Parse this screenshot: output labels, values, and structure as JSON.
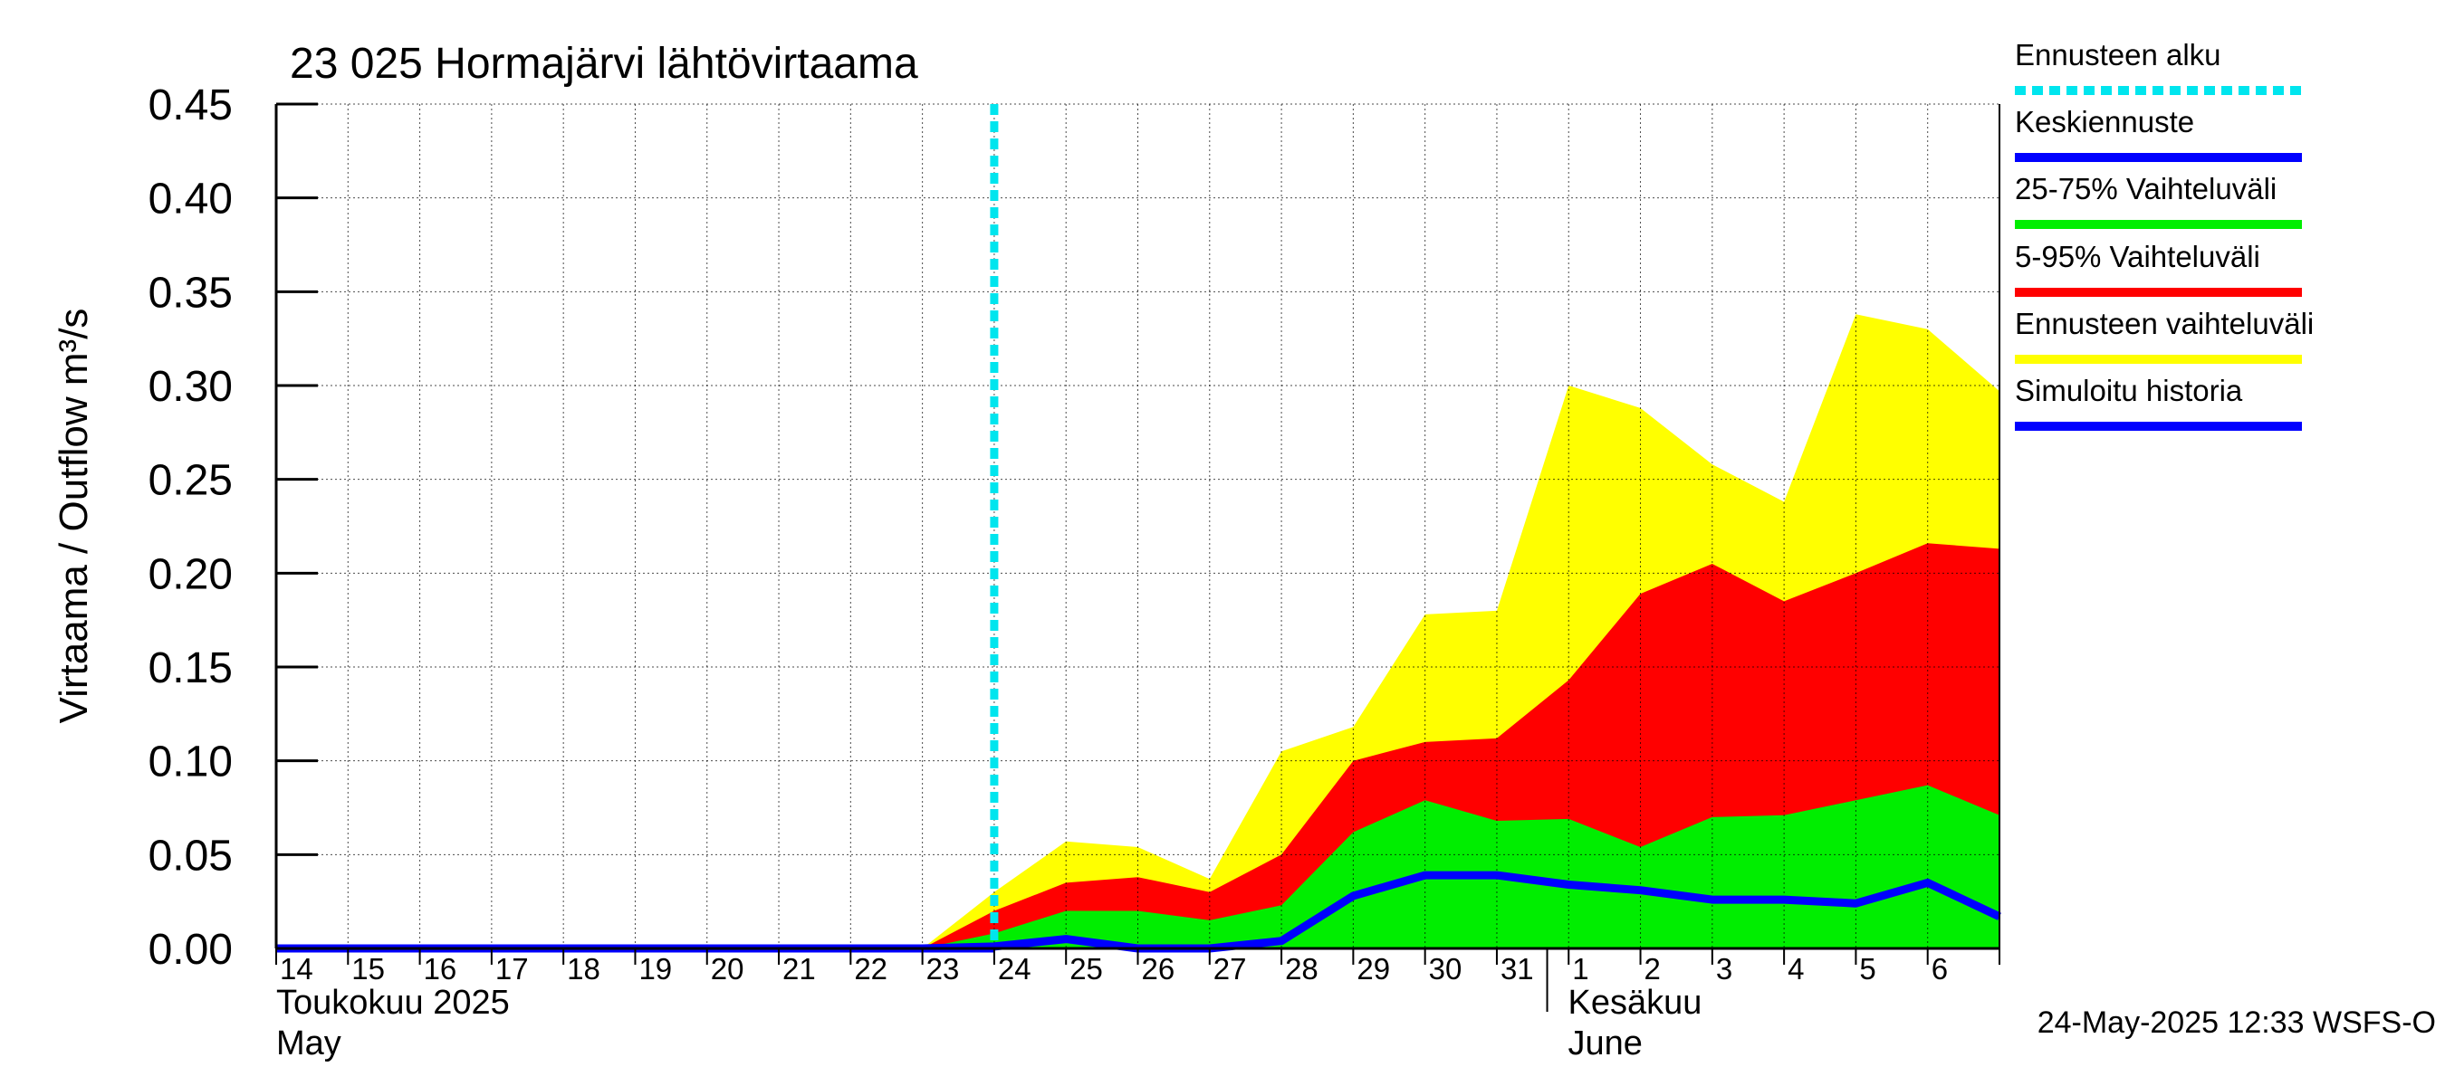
{
  "chart_data": {
    "type": "area",
    "title": "23 025 Hormajärvi lähtövirtaama",
    "ylabel": "Virtaama / Outflow    m³/s",
    "ylim": [
      0,
      0.45
    ],
    "yticks": [
      "0.00",
      "0.05",
      "0.10",
      "0.15",
      "0.20",
      "0.25",
      "0.30",
      "0.35",
      "0.40",
      "0.45"
    ],
    "xlim": [
      "2025-05-14",
      "2025-06-07"
    ],
    "day_labels": [
      "14",
      "15",
      "16",
      "17",
      "18",
      "19",
      "20",
      "21",
      "22",
      "23",
      "24",
      "25",
      "26",
      "27",
      "28",
      "29",
      "30",
      "31",
      "1",
      "2",
      "3",
      "4",
      "5",
      "6"
    ],
    "month_labels": [
      {
        "line1": "Toukokuu  2025",
        "line2": "May",
        "date": "2025-05-14"
      },
      {
        "line1": "Kesäkuu",
        "line2": "June",
        "date": "2025-06-02"
      }
    ],
    "forecast_start": "2025-05-24",
    "timestamp": "24-May-2025 12:33 WSFS-O",
    "grid": true,
    "legend_position": "right",
    "legend": [
      {
        "label": "Ennusteen alku",
        "color": "#00e5ee",
        "style": "dotted"
      },
      {
        "label": "Keskiennuste",
        "color": "#0000ff",
        "style": "solid"
      },
      {
        "label": "25-75% Vaihteluväli",
        "color": "#00ee00",
        "style": "solid"
      },
      {
        "label": "5-95% Vaihteluväli",
        "color": "#ff0000",
        "style": "solid"
      },
      {
        "label": "Ennusteen vaihteluväli",
        "color": "#ffff00",
        "style": "solid"
      },
      {
        "label": "Simuloitu historia",
        "color": "#0000ff",
        "style": "solid"
      }
    ],
    "x": [
      "2025-05-23",
      "2025-05-24",
      "2025-05-25",
      "2025-05-26",
      "2025-05-27",
      "2025-05-28",
      "2025-05-29",
      "2025-05-30",
      "2025-05-31",
      "2025-06-01",
      "2025-06-02",
      "2025-06-03",
      "2025-06-04",
      "2025-06-05",
      "2025-06-06",
      "2025-06-07"
    ],
    "series": [
      {
        "name": "Ennusteen vaihteluväli",
        "color": "#ffff00",
        "lower": [
          0,
          0,
          0,
          0,
          0,
          0,
          0,
          0,
          0,
          0,
          0,
          0,
          0,
          0,
          0,
          0
        ],
        "upper": [
          0,
          0.03,
          0.057,
          0.054,
          0.037,
          0.105,
          0.118,
          0.178,
          0.18,
          0.3,
          0.288,
          0.258,
          0.238,
          0.338,
          0.33,
          0.297
        ]
      },
      {
        "name": "5-95% Vaihteluväli",
        "color": "#ff0000",
        "lower": [
          0,
          0,
          0,
          0,
          0,
          0,
          0.003,
          0.004,
          0,
          0,
          0,
          0,
          0,
          0,
          0,
          0
        ],
        "upper": [
          0,
          0.02,
          0.035,
          0.038,
          0.03,
          0.05,
          0.1,
          0.11,
          0.112,
          0.143,
          0.189,
          0.205,
          0.185,
          0.2,
          0.216,
          0.213
        ]
      },
      {
        "name": "25-75% Vaihteluväli",
        "color": "#00ee00",
        "lower": [
          0,
          0,
          0,
          0,
          0,
          0,
          0,
          0,
          0,
          0,
          0,
          0,
          0,
          0,
          0,
          0
        ],
        "upper": [
          0,
          0.008,
          0.02,
          0.02,
          0.015,
          0.023,
          0.062,
          0.079,
          0.068,
          0.069,
          0.054,
          0.07,
          0.071,
          0.079,
          0.087,
          0.071
        ]
      },
      {
        "name": "Keskiennuste",
        "color": "#0000ff",
        "values": [
          0,
          0.001,
          0.005,
          0,
          0,
          0.004,
          0.028,
          0.039,
          0.039,
          0.034,
          0.031,
          0.026,
          0.026,
          0.024,
          0.035,
          0.017
        ]
      },
      {
        "name": "Simuloitu historia",
        "color": "#0000ff",
        "x": [
          "2025-05-14",
          "2025-05-24"
        ],
        "values": [
          0,
          0
        ]
      }
    ]
  }
}
